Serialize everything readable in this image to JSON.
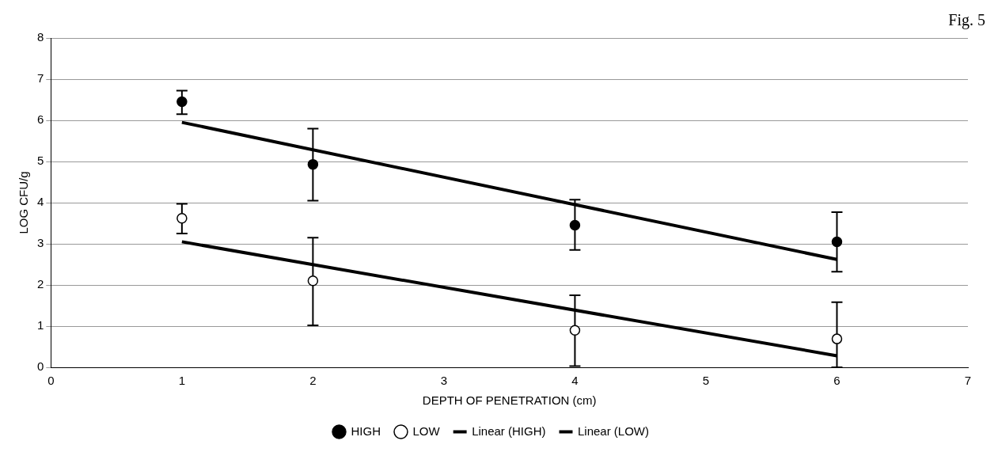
{
  "chart_data": {
    "type": "scatter",
    "xlabel": "DEPTH OF PENETRATION (cm)",
    "ylabel": "LOG CFU/g",
    "annotations": [
      "Fig. 5"
    ],
    "xlim": [
      0,
      7
    ],
    "xticks": [
      0,
      1,
      2,
      3,
      4,
      5,
      6,
      7
    ],
    "ylim": [
      0,
      8
    ],
    "yticks": [
      0,
      1,
      2,
      3,
      4,
      5,
      6,
      7,
      8
    ],
    "grid": "y",
    "legend": "bottom",
    "series": [
      {
        "name": "HIGH",
        "marker": "circle",
        "color": "#000000",
        "x": [
          1,
          2,
          4,
          6
        ],
        "values": [
          6.45,
          4.93,
          3.45,
          3.05
        ],
        "errors": [
          [
            6.15,
            6.72
          ],
          [
            4.05,
            5.8
          ],
          [
            2.85,
            4.07
          ],
          [
            2.32,
            3.77
          ]
        ]
      },
      {
        "name": "LOW",
        "marker": "circle",
        "color": "#ffffff",
        "x": [
          1,
          2,
          4,
          6
        ],
        "values": [
          3.62,
          2.1,
          0.9,
          0.69
        ],
        "errors": [
          [
            3.25,
            3.97
          ],
          [
            1.02,
            3.15
          ],
          [
            0.03,
            1.75
          ],
          [
            0,
            1.58
          ]
        ]
      },
      {
        "name": "Linear (HIGH)",
        "type": "line",
        "marker": "none",
        "color": "#000000",
        "x": [
          1,
          6
        ],
        "values": [
          5.95,
          2.62
        ]
      },
      {
        "name": "Linear (LOW)",
        "type": "line",
        "marker": "none",
        "color": "#000000",
        "x": [
          1,
          6
        ],
        "values": [
          3.05,
          0.28
        ]
      }
    ]
  }
}
